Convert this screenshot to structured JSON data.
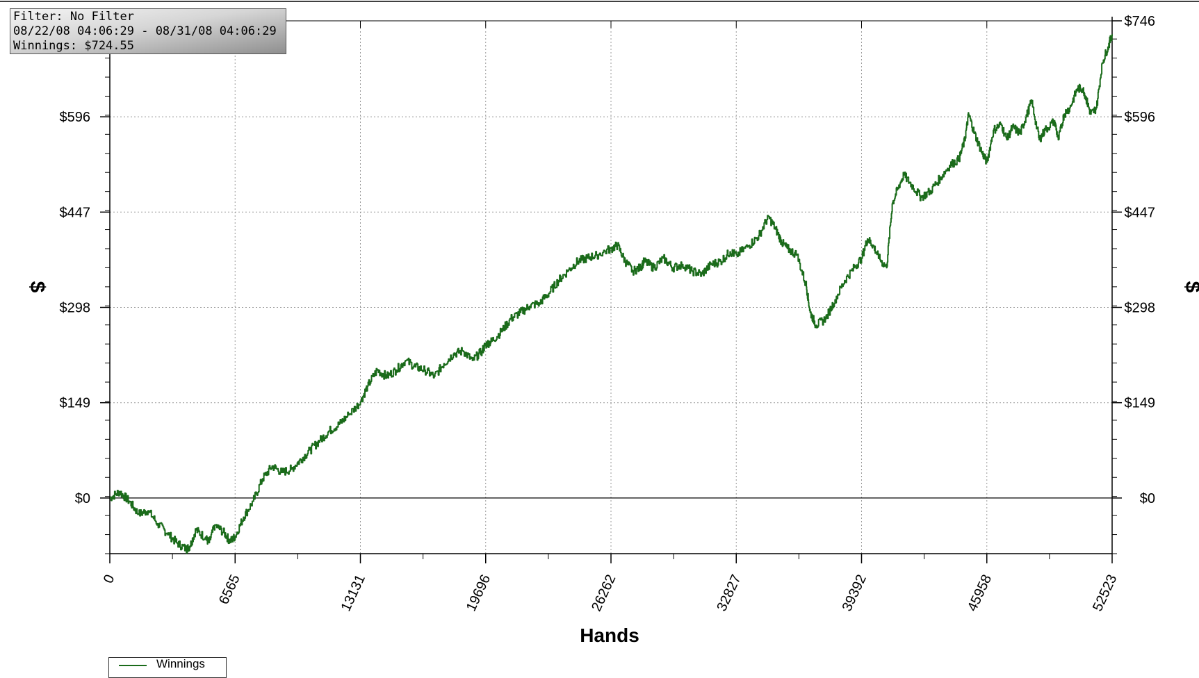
{
  "info": {
    "filter": "Filter: No Filter",
    "date_range": "08/22/08 04:06:29 - 08/31/08 04:06:29",
    "winnings": "Winnings: $724.55"
  },
  "chart_data": {
    "type": "line",
    "title": "",
    "xlabel": "Hands",
    "ylabel": "$",
    "xlim": [
      0,
      52523
    ],
    "ylim": [
      -87,
      746
    ],
    "x_ticks": [
      0,
      6565,
      13131,
      19696,
      26262,
      32827,
      39392,
      45958,
      52523
    ],
    "y_ticks": [
      0,
      149,
      298,
      447,
      596,
      746
    ],
    "y_tick_labels": [
      "$0",
      "$149",
      "$298",
      "$447",
      "$596",
      "$746"
    ],
    "grid": true,
    "legend_position": "bottom-left",
    "series": [
      {
        "name": "Winnings",
        "color": "#1a6b1a",
        "x": [
          0,
          500,
          1000,
          1500,
          2000,
          2500,
          3000,
          3500,
          4000,
          4200,
          4500,
          5000,
          5200,
          5500,
          6000,
          6300,
          6565,
          7000,
          7500,
          8000,
          8500,
          9000,
          9500,
          10000,
          10500,
          11000,
          11500,
          12000,
          12500,
          13131,
          13500,
          14000,
          14500,
          15000,
          15500,
          16000,
          16500,
          17000,
          17500,
          18000,
          18500,
          19000,
          19500,
          19696,
          20000,
          20500,
          21000,
          21500,
          22000,
          22500,
          23000,
          23500,
          24000,
          24500,
          25000,
          25500,
          26262,
          26600,
          27000,
          27400,
          27800,
          28000,
          28500,
          29000,
          29500,
          30000,
          30500,
          31000,
          31500,
          32000,
          32500,
          32827,
          33500,
          34000,
          34500,
          34900,
          35200,
          35500,
          36000,
          36500,
          36700,
          37000,
          37500,
          38000,
          38500,
          39000,
          39392,
          39700,
          40000,
          40300,
          40700,
          41000,
          41300,
          41600,
          42000,
          42500,
          43000,
          43500,
          44000,
          44500,
          44800,
          45000,
          45300,
          45700,
          45958,
          46300,
          46700,
          47000,
          47300,
          47700,
          48000,
          48300,
          48700,
          49000,
          49500,
          49700,
          50000,
          50300,
          50700,
          51000,
          51200,
          51400,
          51700,
          52000,
          52300,
          52523
        ],
        "y": [
          0,
          10,
          -5,
          -25,
          -20,
          -40,
          -55,
          -70,
          -80,
          -75,
          -50,
          -62,
          -70,
          -42,
          -55,
          -68,
          -60,
          -30,
          -5,
          30,
          50,
          40,
          45,
          60,
          75,
          90,
          105,
          115,
          130,
          150,
          175,
          200,
          190,
          200,
          215,
          205,
          200,
          190,
          210,
          225,
          230,
          215,
          230,
          240,
          245,
          260,
          280,
          290,
          300,
          305,
          320,
          340,
          355,
          370,
          375,
          380,
          390,
          395,
          370,
          355,
          360,
          370,
          360,
          375,
          360,
          365,
          355,
          350,
          365,
          370,
          385,
          380,
          395,
          410,
          440,
          420,
          400,
          390,
          380,
          330,
          290,
          270,
          280,
          310,
          340,
          360,
          375,
          405,
          395,
          375,
          360,
          460,
          485,
          505,
          490,
          470,
          480,
          500,
          520,
          530,
          560,
          600,
          570,
          540,
          525,
          575,
          585,
          560,
          580,
          570,
          595,
          620,
          560,
          575,
          590,
          560,
          600,
          610,
          640,
          640,
          620,
          600,
          610,
          680,
          705,
          725
        ],
        "final_value": 724.55
      }
    ]
  }
}
